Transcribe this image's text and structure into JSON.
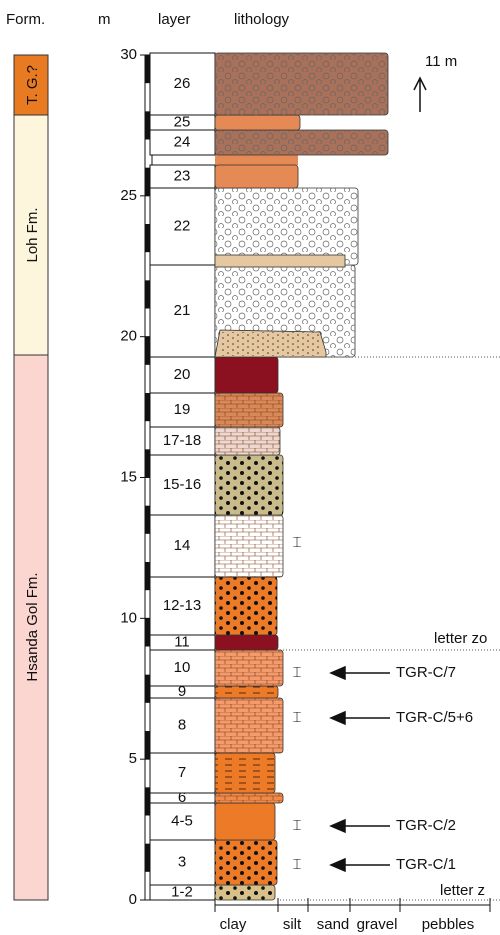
{
  "headers": {
    "formation": "Form.",
    "meters": "m",
    "layer": "layer",
    "lithology": "lithology"
  },
  "scale": {
    "ticks": [
      0,
      5,
      10,
      15,
      20,
      25,
      30
    ]
  },
  "formations": [
    "T. G.?",
    "Loh Fm.",
    "Hsanda Gol Fm."
  ],
  "layers": [
    "1-2",
    "3",
    "4-5",
    "6",
    "7",
    "8",
    "9",
    "10",
    "11",
    "12-13",
    "14",
    "15-16",
    "17-18",
    "19",
    "20",
    "21",
    "22",
    "23",
    "24",
    "25",
    "26"
  ],
  "top_thickness": "11 m",
  "samples": [
    "TGR-C/7",
    "TGR-C/5+6",
    "TGR-C/2",
    "TGR-C/1"
  ],
  "markers": [
    "letter zo",
    "letter z"
  ],
  "grain_sizes": [
    "clay",
    "silt",
    "sand",
    "gravel",
    "pebbles"
  ]
}
